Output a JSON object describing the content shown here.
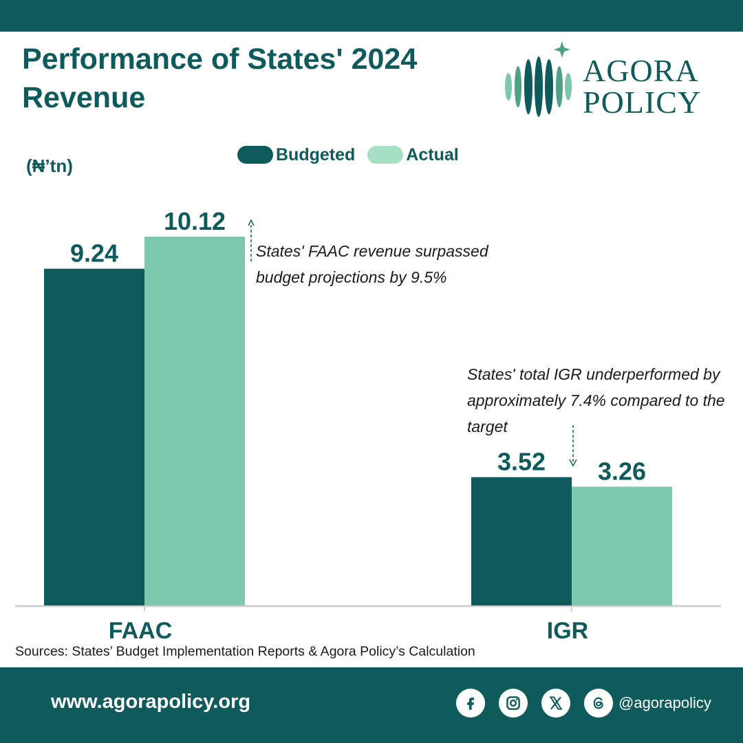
{
  "header": {
    "title": "Performance of States' 2024 Revenue",
    "logo": {
      "line1": "AGORA",
      "line2": "POLICY"
    }
  },
  "colors": {
    "brand": "#0f5a5a",
    "budgeted": "#0f5a5a",
    "actual": "#7cc7ad",
    "axis": "#cfcfcf"
  },
  "chart_data": {
    "type": "bar",
    "categories": [
      "FAAC",
      "IGR"
    ],
    "series": [
      {
        "name": "Budgeted",
        "values": [
          9.24,
          3.52
        ]
      },
      {
        "name": "Actual",
        "values": [
          10.12,
          3.26
        ]
      }
    ],
    "value_labels": [
      [
        "9.24",
        "3.52"
      ],
      [
        "10.12",
        "3.26"
      ]
    ],
    "ylabel": "(₦’tn)",
    "ylim": [
      0,
      10.12
    ],
    "grid": false,
    "legend": "top",
    "annotations": [
      {
        "category": "FAAC",
        "text": "States' FAAC revenue surpassed budget projections by 9.5%"
      },
      {
        "category": "IGR",
        "text": "States' total IGR underperformed by approximately 7.4% compared to the target"
      }
    ],
    "source": "Sources: States’ Budget Implementation Reports & Agora Policy’s Calculation"
  },
  "footer": {
    "website": "www.agorapolicy.org",
    "handle": "@agorapolicy",
    "social_icons": [
      "facebook-icon",
      "instagram-icon",
      "x-icon",
      "threads-icon"
    ]
  }
}
